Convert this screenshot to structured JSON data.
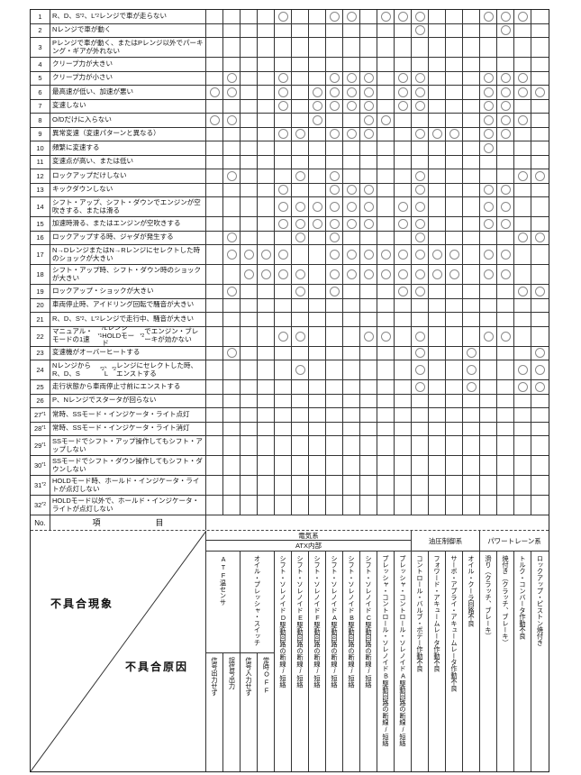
{
  "matrix": {
    "corner": {
      "no_label": "No.",
      "item_label": "項　目",
      "phenomenon_label": "不具合現象",
      "cause_label": "不具合原因"
    },
    "groups": [
      {
        "label": "電気系",
        "cols": 12,
        "sub": "ATX内部"
      },
      {
        "label": "油圧制御系",
        "cols": 4
      },
      {
        "label": "パワートレーン系",
        "cols": 4
      }
    ],
    "causes": [
      {
        "label": "ATF温センサ",
        "span": 2,
        "subs": [
          "信号出力せず",
          "誤信号出力"
        ]
      },
      {
        "label": "オイル・プレッシャ・スイッチ",
        "span": 2,
        "subs": [
          "信号入力せず",
          "常時OFF"
        ]
      },
      {
        "label": "シフト・ソレノイドD駆動回路の断線/短絡",
        "span": 1
      },
      {
        "label": "シフト・ソレノイドE駆動回路の断線/短絡",
        "span": 1
      },
      {
        "label": "シフト・ソレノイドF駆動回路の断線/短絡",
        "span": 1
      },
      {
        "label": "シフト・ソレノイドA駆動回路の断線/短絡",
        "span": 1
      },
      {
        "label": "シフト・ソレノイドB駆動回路の断線/短絡",
        "span": 1
      },
      {
        "label": "シフト・ソレノイドC駆動回路の断線/短絡",
        "span": 1
      },
      {
        "label": "プレッシャ・コントロール・ソレノイドB駆動回路の断線/短絡",
        "span": 1
      },
      {
        "label": "プレッシャ・コントロール・ソレノイドA駆動回路の断線/短絡",
        "span": 1
      },
      {
        "label": "コントロール・バルブ・ボデー作動不良",
        "span": 1
      },
      {
        "label": "フォワード・アキュームレータ作動不良",
        "span": 1
      },
      {
        "label": "サーボ・アプライ・アキュームレータ作動不良",
        "span": 1
      },
      {
        "label": "オイル・クーラ回路不良",
        "span": 1
      },
      {
        "label": "滑り（クラッチ、ブレーキ）",
        "span": 1
      },
      {
        "label": "焼付き（クラッチ、ブレーキ）",
        "span": 1
      },
      {
        "label": "トルク・コンバータ作動不良",
        "span": 1
      },
      {
        "label": "ロックアップ・ピストン焼付き",
        "span": 1
      }
    ],
    "rows": [
      {
        "no": "1",
        "sup": "",
        "tall": false,
        "label": "R、D、S*2、L*2レンジで車が走らない",
        "circles": [
          5,
          8,
          9,
          11,
          12,
          13,
          17,
          18,
          19
        ]
      },
      {
        "no": "2",
        "sup": "",
        "tall": false,
        "label": "Nレンジで車が動く",
        "circles": [
          13,
          18
        ]
      },
      {
        "no": "3",
        "sup": "",
        "tall": true,
        "label": "Pレンジで車が動く、またはPレンジ以外でパーキング・ギアが外れない",
        "circles": []
      },
      {
        "no": "4",
        "sup": "",
        "tall": false,
        "label": "クリープ力が大きい",
        "circles": []
      },
      {
        "no": "5",
        "sup": "",
        "tall": false,
        "label": "クリープ力が小さい",
        "circles": [
          2,
          5,
          8,
          9,
          10,
          12,
          13,
          17,
          18,
          19
        ]
      },
      {
        "no": "6",
        "sup": "",
        "tall": false,
        "label": "最高速が低い、加速が悪い",
        "circles": [
          1,
          2,
          5,
          7,
          8,
          9,
          10,
          12,
          13,
          17,
          18,
          19,
          20
        ]
      },
      {
        "no": "7",
        "sup": "",
        "tall": false,
        "label": "変速しない",
        "circles": [
          5,
          7,
          8,
          9,
          10,
          12,
          13,
          17,
          18
        ]
      },
      {
        "no": "8",
        "sup": "",
        "tall": false,
        "label": "O/Dだけに入らない",
        "circles": [
          1,
          2,
          7,
          10,
          11,
          17,
          18,
          19
        ]
      },
      {
        "no": "9",
        "sup": "",
        "tall": false,
        "label": "異常変速（変速パターンと異なる）",
        "circles": [
          5,
          6,
          8,
          9,
          10,
          13,
          14,
          15,
          17,
          18
        ]
      },
      {
        "no": "10",
        "sup": "",
        "tall": false,
        "label": "頻繁に変速する",
        "circles": [
          17
        ]
      },
      {
        "no": "11",
        "sup": "",
        "tall": false,
        "label": "変速点が高い、または低い",
        "circles": []
      },
      {
        "no": "12",
        "sup": "",
        "tall": false,
        "label": "ロックアップだけしない",
        "circles": [
          2,
          6,
          8,
          13,
          19,
          20
        ]
      },
      {
        "no": "13",
        "sup": "",
        "tall": false,
        "label": "キックダウンしない",
        "circles": [
          5,
          8,
          9,
          10,
          13,
          17,
          18
        ]
      },
      {
        "no": "14",
        "sup": "",
        "tall": true,
        "label": "シフト・アップ、シフト・ダウンでエンジンが空吹きする、または滑る",
        "circles": [
          5,
          6,
          7,
          8,
          9,
          10,
          12,
          13,
          17,
          18
        ]
      },
      {
        "no": "15",
        "sup": "",
        "tall": false,
        "label": "加速時滑る、またはエンジンが空吹きする",
        "circles": [
          5,
          6,
          7,
          8,
          9,
          10,
          12,
          13,
          17,
          18
        ]
      },
      {
        "no": "16",
        "sup": "",
        "tall": false,
        "label": "ロックアップする時、ジャダが発生する",
        "circles": [
          2,
          6,
          8,
          13,
          19,
          20
        ]
      },
      {
        "no": "17",
        "sup": "",
        "tall": true,
        "label": "N→DレンジまたはN→Rレンジにセレクトした時のショックが大きい",
        "circles": [
          2,
          3,
          4,
          5,
          8,
          9,
          10,
          11,
          12,
          13,
          14,
          15,
          17,
          18
        ]
      },
      {
        "no": "18",
        "sup": "",
        "tall": true,
        "label": "シフト・アップ時、シフト・ダウン時のショックが大きい",
        "circles": [
          3,
          4,
          5,
          6,
          8,
          9,
          10,
          11,
          12,
          13,
          14,
          15,
          17,
          18
        ]
      },
      {
        "no": "19",
        "sup": "",
        "tall": false,
        "label": "ロックアップ・ショックが大きい",
        "circles": [
          2,
          6,
          8,
          12,
          13,
          19,
          20
        ]
      },
      {
        "no": "20",
        "sup": "",
        "tall": false,
        "label": "車両停止時、アイドリング回転で騒音が大きい",
        "circles": []
      },
      {
        "no": "21",
        "sup": "",
        "tall": false,
        "label": "R、D、S*2、L*2レンジで走行中、騒音が大きい",
        "circles": []
      },
      {
        "no": "22",
        "sup": "",
        "tall": true,
        "label": "マニュアル・モードの1速*1/LレンジHOLDモード*2でエンジン・ブレーキが効かない",
        "circles": [
          5,
          6,
          10,
          11,
          13,
          17,
          18
        ]
      },
      {
        "no": "23",
        "sup": "",
        "tall": false,
        "label": "変速機がオーバーヒートする",
        "circles": [
          2,
          13,
          16,
          20
        ]
      },
      {
        "no": "24",
        "sup": "",
        "tall": true,
        "label": "NレンジからR、D、S*2、L*2レンジにセレクトした時、エンストする",
        "circles": [
          6,
          13,
          16,
          19,
          20
        ]
      },
      {
        "no": "25",
        "sup": "",
        "tall": false,
        "label": "走行状態から車両停止寸前にエンストする",
        "circles": [
          13,
          16,
          19,
          20
        ]
      },
      {
        "no": "26",
        "sup": "",
        "tall": false,
        "label": "P、Nレンジでスタータが回らない",
        "circles": []
      },
      {
        "no": "27",
        "sup": "*1",
        "tall": false,
        "label": "常時、SSモード・インジケータ・ライト点灯",
        "circles": []
      },
      {
        "no": "28",
        "sup": "*1",
        "tall": false,
        "label": "常時、SSモード・インジケータ・ライト消灯",
        "circles": []
      },
      {
        "no": "29",
        "sup": "*1",
        "tall": true,
        "label": "SSモードでシフト・アップ操作してもシフト・アップしない",
        "circles": []
      },
      {
        "no": "30",
        "sup": "*1",
        "tall": true,
        "label": "SSモードでシフト・ダウン操作してもシフト・ダウンしない",
        "circles": []
      },
      {
        "no": "31",
        "sup": "*2",
        "tall": true,
        "label": "HOLDモード時、ホールド・インジケータ・ライトが点灯しない",
        "circles": []
      },
      {
        "no": "32",
        "sup": "*2",
        "tall": true,
        "label": "HOLDモード以外で、ホールド・インジケータ・ライトが点灯しない",
        "circles": []
      }
    ],
    "colors": {
      "line": "#333333",
      "circle": "#8a8a8a"
    }
  }
}
